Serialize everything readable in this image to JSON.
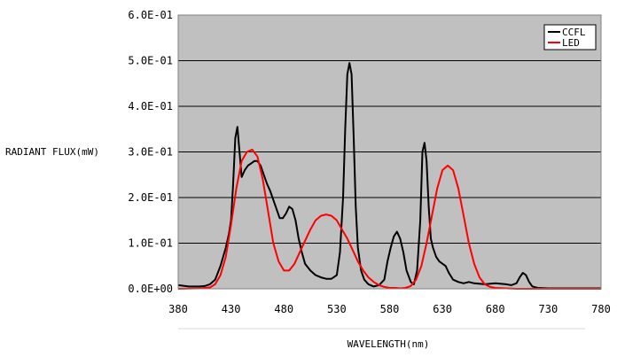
{
  "chart_data": {
    "type": "line",
    "title": "",
    "xlabel": "WAVELENGTH(nm)",
    "ylabel": "RADIANT FLUX(mW)",
    "xlim": [
      380,
      780
    ],
    "ylim": [
      0,
      0.6
    ],
    "x_ticks": [
      "380",
      "430",
      "480",
      "530",
      "580",
      "630",
      "680",
      "730",
      "780"
    ],
    "x_tick_values": [
      380,
      430,
      480,
      530,
      580,
      630,
      680,
      730,
      780
    ],
    "y_ticks": [
      "0.0E+00",
      "1.0E-01",
      "2.0E-01",
      "3.0E-01",
      "4.0E-01",
      "5.0E-01",
      "6.0E-01"
    ],
    "y_tick_values": [
      0,
      0.1,
      0.2,
      0.3,
      0.4,
      0.5,
      0.6
    ],
    "grid": "horizontal",
    "legend_position": "top-right",
    "plot_background": "#c0c0c0",
    "series": [
      {
        "name": "CCFL",
        "color": "#000000",
        "x": [
          380,
          390,
          400,
          405,
          410,
          415,
          420,
          425,
          428,
          430,
          432,
          434,
          436,
          438,
          440,
          443,
          446,
          449,
          452,
          455,
          458,
          461,
          464,
          467,
          470,
          473,
          476,
          479,
          482,
          485,
          488,
          491,
          494,
          497,
          500,
          505,
          510,
          515,
          520,
          525,
          530,
          533,
          536,
          538,
          540,
          542,
          544,
          546,
          548,
          550,
          553,
          556,
          560,
          565,
          570,
          575,
          578,
          581,
          584,
          587,
          590,
          593,
          596,
          600,
          603,
          606,
          609,
          611,
          613,
          615,
          617,
          619,
          621,
          624,
          627,
          630,
          633,
          636,
          640,
          645,
          650,
          655,
          660,
          670,
          680,
          690,
          695,
          700,
          703,
          706,
          709,
          712,
          715,
          720,
          730,
          740,
          750,
          760,
          770,
          780
        ],
        "y": [
          0.008,
          0.005,
          0.005,
          0.006,
          0.01,
          0.02,
          0.05,
          0.09,
          0.12,
          0.15,
          0.23,
          0.33,
          0.355,
          0.3,
          0.245,
          0.26,
          0.27,
          0.275,
          0.28,
          0.28,
          0.27,
          0.25,
          0.23,
          0.215,
          0.195,
          0.175,
          0.155,
          0.155,
          0.165,
          0.18,
          0.175,
          0.15,
          0.11,
          0.08,
          0.055,
          0.04,
          0.03,
          0.025,
          0.022,
          0.022,
          0.03,
          0.08,
          0.2,
          0.35,
          0.47,
          0.495,
          0.47,
          0.33,
          0.18,
          0.09,
          0.04,
          0.02,
          0.01,
          0.005,
          0.008,
          0.02,
          0.06,
          0.09,
          0.115,
          0.125,
          0.11,
          0.08,
          0.04,
          0.015,
          0.01,
          0.04,
          0.15,
          0.3,
          0.32,
          0.28,
          0.18,
          0.11,
          0.09,
          0.07,
          0.06,
          0.055,
          0.05,
          0.035,
          0.02,
          0.015,
          0.012,
          0.015,
          0.012,
          0.01,
          0.012,
          0.01,
          0.008,
          0.012,
          0.025,
          0.035,
          0.03,
          0.015,
          0.005,
          0.002,
          0.001,
          0.001,
          0.001,
          0.001,
          0.001,
          0.001
        ]
      },
      {
        "name": "LED",
        "color": "#ff0000",
        "x": [
          380,
          400,
          410,
          415,
          420,
          425,
          430,
          435,
          440,
          445,
          450,
          455,
          460,
          465,
          470,
          475,
          480,
          485,
          490,
          495,
          500,
          505,
          510,
          515,
          520,
          525,
          530,
          535,
          540,
          545,
          550,
          555,
          560,
          565,
          570,
          575,
          580,
          585,
          590,
          595,
          600,
          605,
          610,
          615,
          620,
          625,
          630,
          635,
          640,
          645,
          650,
          655,
          660,
          665,
          670,
          675,
          680,
          690,
          700,
          720,
          740,
          760,
          780
        ],
        "y": [
          0.0,
          0.001,
          0.003,
          0.01,
          0.03,
          0.07,
          0.14,
          0.22,
          0.28,
          0.3,
          0.305,
          0.29,
          0.24,
          0.17,
          0.1,
          0.06,
          0.04,
          0.04,
          0.055,
          0.08,
          0.105,
          0.13,
          0.15,
          0.16,
          0.163,
          0.16,
          0.15,
          0.13,
          0.11,
          0.085,
          0.06,
          0.04,
          0.025,
          0.015,
          0.008,
          0.004,
          0.002,
          0.002,
          0.001,
          0.002,
          0.006,
          0.02,
          0.05,
          0.1,
          0.16,
          0.22,
          0.26,
          0.27,
          0.26,
          0.22,
          0.16,
          0.1,
          0.055,
          0.025,
          0.01,
          0.004,
          0.002,
          0.001,
          0.0,
          0.0,
          0.0,
          0.0,
          0.0
        ]
      }
    ]
  }
}
